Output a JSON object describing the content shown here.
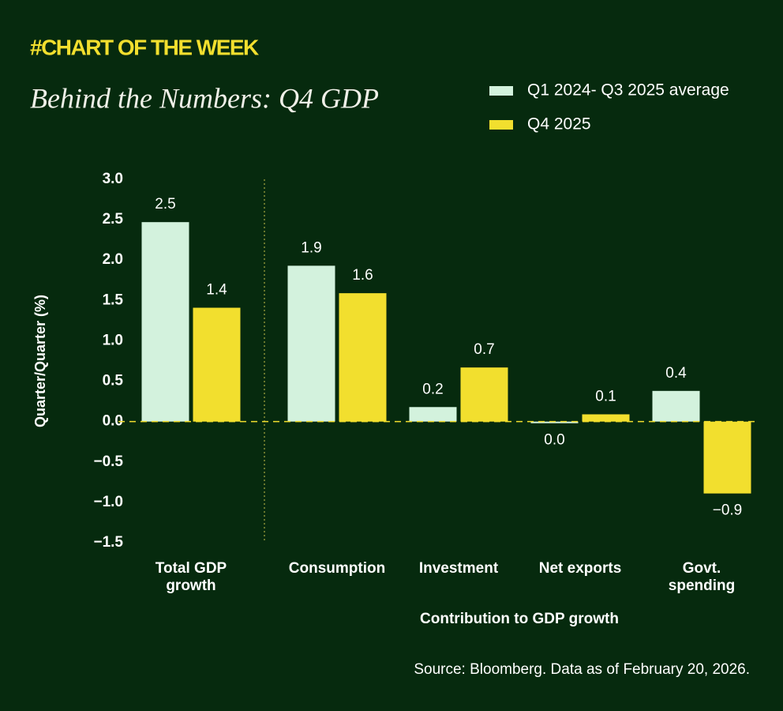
{
  "chart_data": {
    "type": "bar",
    "kicker": "#CHART OF THE WEEK",
    "title": "Behind the Numbers: Q4 GDP",
    "y_label": "Quarter/Quarter (%)",
    "x_label": "Contribution to GDP growth",
    "source": "Source: Bloomberg. Data as of February 20, 2026.",
    "categories": [
      "Total GDP growth",
      "Consumption",
      "Investment",
      "Net exports",
      "Govt. spending"
    ],
    "series": [
      {
        "name": "Q1 2024- Q3 2025 average",
        "color": "#d3f2dd",
        "values": [
          2.47,
          1.93,
          0.18,
          -0.02,
          0.38
        ],
        "value_labels": [
          "2.5",
          "1.9",
          "0.2",
          "0.0",
          "0.4"
        ]
      },
      {
        "name": "Q4 2025",
        "color": "#f2df2e",
        "values": [
          1.41,
          1.59,
          0.67,
          0.09,
          -0.89
        ],
        "value_labels": [
          "1.4",
          "1.6",
          "0.7",
          "0.1",
          "−0.9"
        ]
      }
    ],
    "ylim": [
      -1.5,
      3.0
    ],
    "yticks": [
      {
        "value": -1.5,
        "label": "−1.5"
      },
      {
        "value": -1.0,
        "label": "−1.0"
      },
      {
        "value": -0.5,
        "label": "−0.5"
      },
      {
        "value": 0,
        "label": "0.0"
      },
      0.5,
      {
        "value": 1,
        "label": "1.0"
      },
      1.5,
      {
        "value": 2,
        "label": "2.0"
      },
      2.5,
      {
        "value": 3,
        "label": "3.0"
      }
    ],
    "legend": "top-right",
    "zero_line_color": "#f2df2e"
  }
}
